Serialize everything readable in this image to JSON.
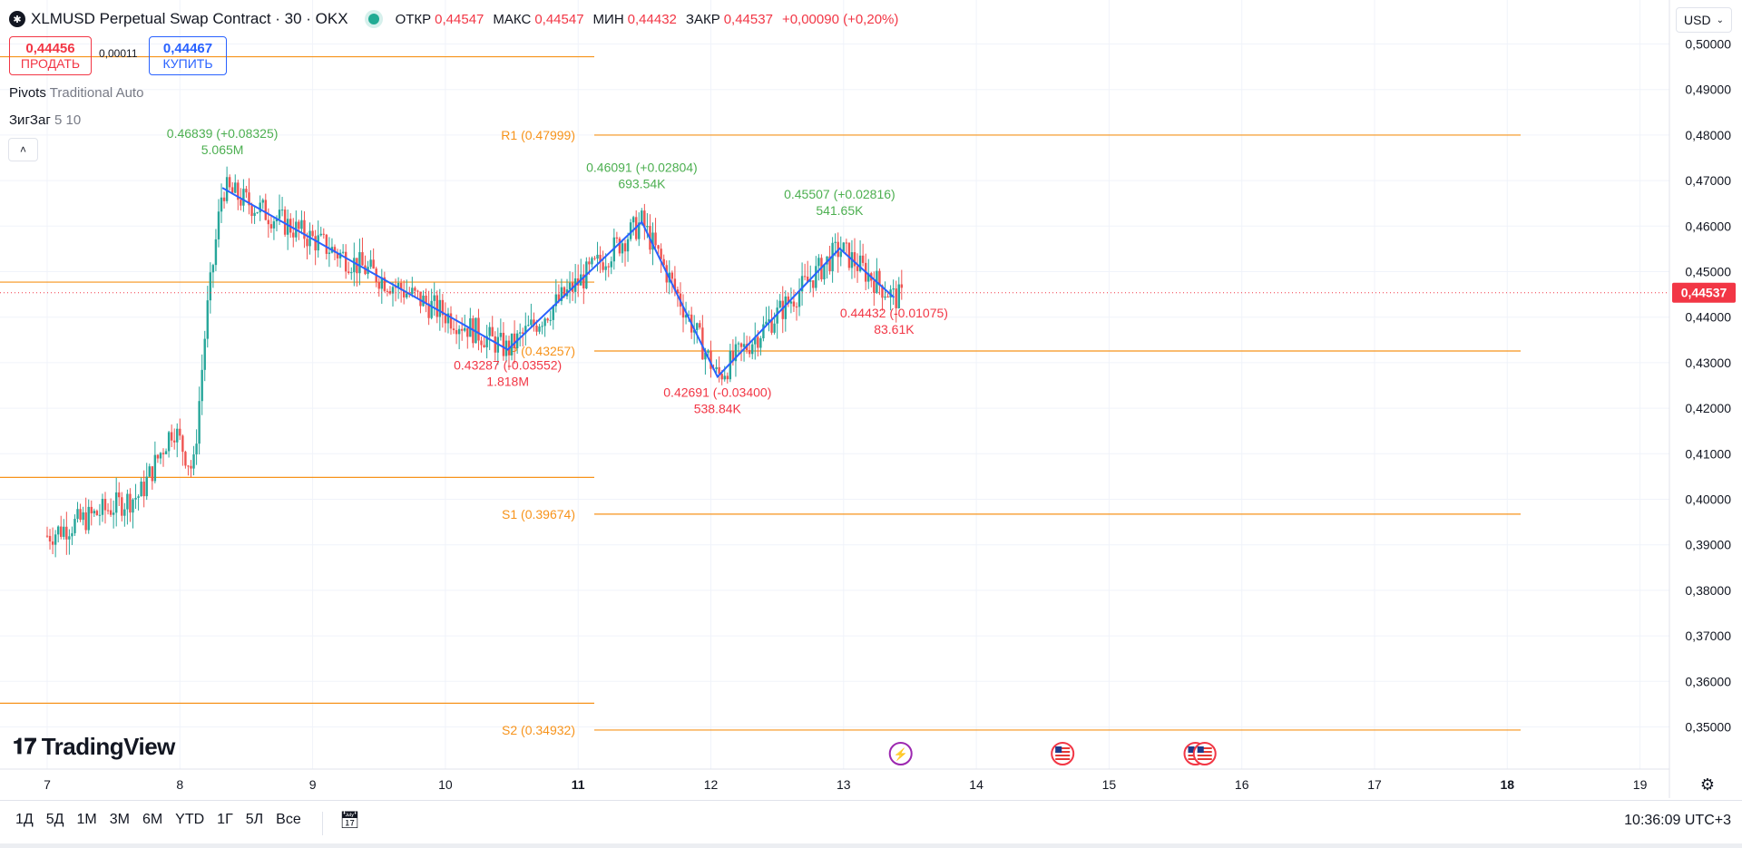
{
  "header": {
    "title": "XLMUSD Perpetual Swap Contract · 30 · OKX",
    "ohlc": [
      {
        "label": "ОТКР",
        "value": "0,44547"
      },
      {
        "label": "МАКС",
        "value": "0,44547"
      },
      {
        "label": "МИН",
        "value": "0,44432"
      },
      {
        "label": "ЗАКР",
        "value": "0,44537"
      }
    ],
    "change": "+0,00090 (+0,20%)"
  },
  "trade": {
    "sell_price": "0,44456",
    "sell_label": "ПРОДАТЬ",
    "spread": "0,00011",
    "buy_price": "0,44467",
    "buy_label": "КУПИТЬ"
  },
  "indicators": {
    "pivots_name": "Pivots",
    "pivots_params": "Traditional Auto",
    "zigzag_name": "ЗигЗаг",
    "zigzag_params": "5 10"
  },
  "currency": "USD",
  "brand": "TradingView",
  "time_ranges": [
    "1Д",
    "5Д",
    "1М",
    "3М",
    "6М",
    "YTD",
    "1Г",
    "5Л",
    "Все"
  ],
  "clock": "10:36:09 UTC+3",
  "colors": {
    "up": "#26a69a",
    "down": "#ef5350",
    "zigzag": "#2962ff",
    "pivot": "#f7931a",
    "last_price": "#f23645"
  },
  "chart_data": {
    "type": "candlestick",
    "symbol": "XLMUSD",
    "interval": "30",
    "price_axis": {
      "min": 0.345,
      "max": 0.5,
      "ticks": [
        "0,35000",
        "0,36000",
        "0,37000",
        "0,38000",
        "0,39000",
        "0,40000",
        "0,41000",
        "0,42000",
        "0,43000",
        "0,44000",
        "0,45000",
        "0,46000",
        "0,47000",
        "0,48000",
        "0,49000",
        "0,50000"
      ]
    },
    "time_axis": {
      "ticks": [
        "7",
        "8",
        "9",
        "10",
        "11",
        "12",
        "13",
        "14",
        "15",
        "16",
        "17",
        "18",
        "19"
      ]
    },
    "last_price": "0,44537",
    "ohlc": [],
    "pivots_current": [
      {
        "label": "R1 (0.47999)",
        "value": 0.47999
      },
      {
        "label": "P (0.43257)",
        "value": 0.43257
      },
      {
        "label": "S1 (0.39674)",
        "value": 0.39674
      },
      {
        "label": "S2 (0.34932)",
        "value": 0.34932
      }
    ],
    "pivots_previous": [
      0.4972,
      0.4477,
      0.4048,
      0.3552
    ],
    "zigzag_points": [
      {
        "day": 8.32,
        "price": 0.46839
      },
      {
        "day": 10.47,
        "price": 0.43287
      },
      {
        "day": 11.48,
        "price": 0.46091
      },
      {
        "day": 12.05,
        "price": 0.42691
      },
      {
        "day": 12.97,
        "price": 0.45507
      },
      {
        "day": 13.38,
        "price": 0.44432
      }
    ],
    "zigzag_labels": [
      {
        "price": "0.46839 (+0.08325)",
        "volume": "5.065M",
        "kind": "high"
      },
      {
        "price": "0.43287 (-0.03552)",
        "volume": "1.818M",
        "kind": "low"
      },
      {
        "price": "0.46091 (+0.02804)",
        "volume": "693.54K",
        "kind": "high"
      },
      {
        "price": "0.42691 (-0.03400)",
        "volume": "538.84K",
        "kind": "low"
      },
      {
        "price": "0.45507 (+0.02816)",
        "volume": "541.65K",
        "kind": "high"
      },
      {
        "price": "0.44432 (-0.01075)",
        "volume": "83.61K",
        "kind": "low"
      }
    ],
    "events": [
      {
        "day": 13.43,
        "icon": "lightning-icon"
      },
      {
        "day": 14.65,
        "icon": "us-flag-icon"
      },
      {
        "day": 15.65,
        "icon": "us-flag-icon"
      },
      {
        "day": 15.72,
        "icon": "us-flag-icon"
      }
    ]
  }
}
